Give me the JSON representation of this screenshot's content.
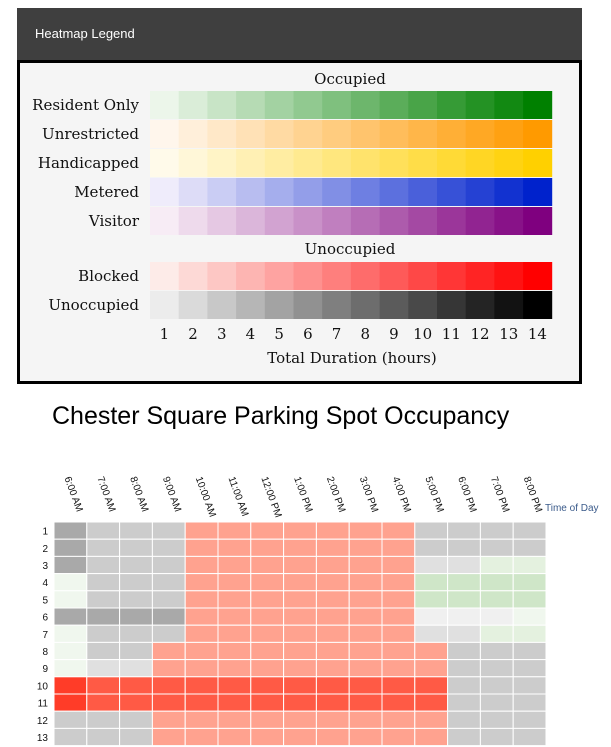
{
  "legend": {
    "header_title": "Heatmap Legend",
    "occupied_title": "Occupied",
    "unoccupied_title": "Unoccupied",
    "occupied_rows": [
      {
        "label": "Resident Only",
        "key": "resident",
        "start": "#ecf6ea",
        "end": "#008000"
      },
      {
        "label": "Unrestricted",
        "key": "unrestricted",
        "start": "#fff6ec",
        "end": "#ff9a00"
      },
      {
        "label": "Handicapped",
        "key": "handicapped",
        "start": "#fffaea",
        "end": "#ffd000"
      },
      {
        "label": "Metered",
        "key": "metered",
        "start": "#efecfb",
        "end": "#0022cc"
      },
      {
        "label": "Visitor",
        "key": "visitor",
        "start": "#f7ecf5",
        "end": "#7f007f"
      }
    ],
    "unoccupied_rows": [
      {
        "label": "Blocked",
        "key": "blocked",
        "start": "#fdebe8",
        "end": "#ff0000"
      },
      {
        "label": "Unoccupied",
        "key": "unoccupied",
        "start": "#ececec",
        "end": "#000000"
      }
    ],
    "hours": [
      "1",
      "2",
      "3",
      "4",
      "5",
      "6",
      "7",
      "8",
      "9",
      "10",
      "11",
      "12",
      "13",
      "14"
    ],
    "xlabel": "Total Duration (hours)"
  },
  "chart_title": "Chester Square Parking Spot Occupancy",
  "chart_data": {
    "type": "heatmap",
    "title": "Chester Square Parking Spot Occupancy",
    "x_label": "Time of Day",
    "x": [
      "6:00 AM",
      "7:00 AM",
      "8:00 AM",
      "9:00 AM",
      "10:00 AM",
      "11:00 AM",
      "12:00 PM",
      "1:00 PM",
      "2:00 PM",
      "3:00 PM",
      "4:00 PM",
      "5:00 PM",
      "6:00 PM",
      "7:00 PM",
      "8:00 PM"
    ],
    "y": [
      "1",
      "2",
      "3",
      "4",
      "5",
      "6",
      "7",
      "8",
      "9",
      "10",
      "11",
      "12",
      "13"
    ],
    "colors": {
      "U": "#cccccc",
      "B": "#a9a9a9",
      "UL": "#e0e0e0",
      "UVL": "#f0f0f0",
      "R0": "#f0f7ee",
      "R1": "#e4f1df",
      "R2": "#cfe6c8",
      "P": "#ffa28f",
      "PD": "#ff5a45",
      "PDD": "#ff3c28"
    },
    "cells": [
      [
        "B",
        "U",
        "U",
        "U",
        "P",
        "P",
        "P",
        "P",
        "P",
        "P",
        "P",
        "U",
        "U",
        "U",
        "U"
      ],
      [
        "B",
        "U",
        "U",
        "U",
        "P",
        "P",
        "P",
        "P",
        "P",
        "P",
        "P",
        "U",
        "U",
        "U",
        "U"
      ],
      [
        "B",
        "U",
        "U",
        "U",
        "P",
        "P",
        "P",
        "P",
        "P",
        "P",
        "P",
        "UL",
        "UL",
        "R1",
        "R1"
      ],
      [
        "R0",
        "U",
        "U",
        "U",
        "P",
        "P",
        "P",
        "P",
        "P",
        "P",
        "P",
        "R2",
        "R2",
        "R2",
        "R2"
      ],
      [
        "R0",
        "U",
        "U",
        "U",
        "P",
        "P",
        "P",
        "P",
        "P",
        "P",
        "P",
        "R2",
        "R2",
        "R2",
        "R2"
      ],
      [
        "B",
        "B",
        "B",
        "B",
        "P",
        "P",
        "P",
        "P",
        "P",
        "P",
        "P",
        "UVL",
        "UVL",
        "UVL",
        "R0"
      ],
      [
        "R0",
        "U",
        "U",
        "U",
        "P",
        "P",
        "P",
        "P",
        "P",
        "P",
        "P",
        "UL",
        "UL",
        "R1",
        "R1"
      ],
      [
        "R0",
        "U",
        "U",
        "P",
        "P",
        "P",
        "P",
        "P",
        "P",
        "P",
        "P",
        "P",
        "U",
        "U",
        "U"
      ],
      [
        "R0",
        "UL",
        "UL",
        "P",
        "P",
        "P",
        "P",
        "P",
        "P",
        "P",
        "P",
        "P",
        "U",
        "U",
        "U"
      ],
      [
        "PDD",
        "PD",
        "PD",
        "PD",
        "PD",
        "PD",
        "PD",
        "PD",
        "PD",
        "PD",
        "PD",
        "PD",
        "U",
        "U",
        "U"
      ],
      [
        "PDD",
        "PD",
        "PD",
        "PD",
        "PD",
        "PD",
        "PD",
        "PD",
        "PD",
        "PD",
        "PD",
        "PD",
        "U",
        "U",
        "U"
      ],
      [
        "U",
        "U",
        "U",
        "P",
        "P",
        "P",
        "P",
        "P",
        "P",
        "P",
        "P",
        "P",
        "U",
        "U",
        "U"
      ],
      [
        "U",
        "U",
        "U",
        "P",
        "P",
        "P",
        "P",
        "P",
        "P",
        "P",
        "P",
        "P",
        "U",
        "U",
        "U"
      ]
    ]
  }
}
